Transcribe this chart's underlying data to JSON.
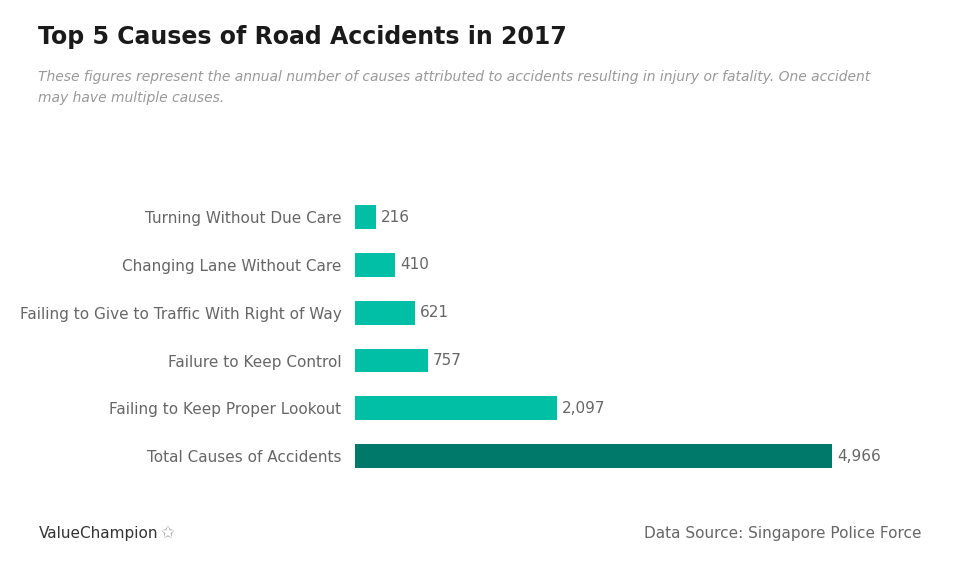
{
  "title": "Top 5 Causes of Road Accidents in 2017",
  "subtitle": "These figures represent the annual number of causes attributed to accidents resulting in injury or fatality. One accident\nmay have multiple causes.",
  "categories": [
    "Total Causes of Accidents",
    "Failing to Keep Proper Lookout",
    "Failure to Keep Control",
    "Failing to Give to Traffic With Right of Way",
    "Changing Lane Without Care",
    "Turning Without Due Care"
  ],
  "values": [
    4966,
    2097,
    757,
    621,
    410,
    216
  ],
  "bar_colors": [
    "#00796b",
    "#00bfa5",
    "#00bfa5",
    "#00bfa5",
    "#00bfa5",
    "#00bfa5"
  ],
  "value_labels": [
    "4,966",
    "2,097",
    "757",
    "621",
    "410",
    "216"
  ],
  "xlim": [
    0,
    5500
  ],
  "background_color": "#ffffff",
  "title_fontsize": 17,
  "subtitle_fontsize": 10,
  "label_fontsize": 11,
  "value_fontsize": 11,
  "footer_left": "ValueChampion",
  "footer_right": "Data Source: Singapore Police Force",
  "footer_fontsize": 11
}
